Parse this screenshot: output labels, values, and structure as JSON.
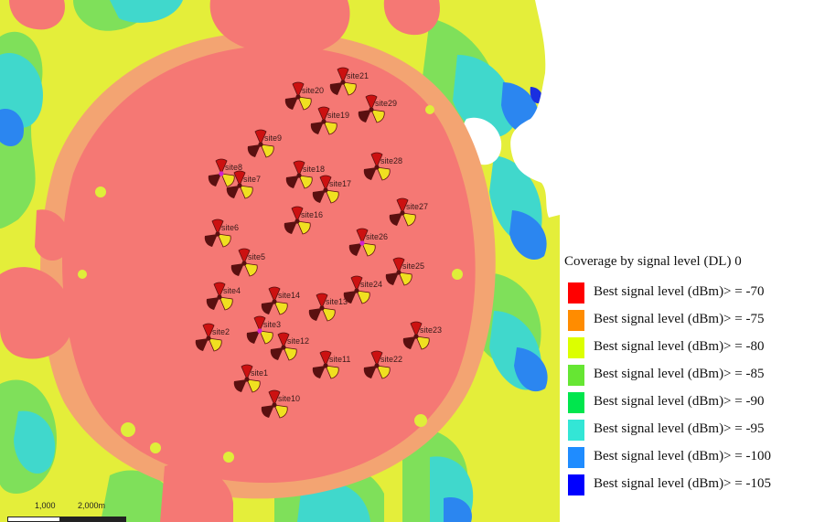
{
  "map": {
    "sites": [
      {
        "label": "site1"
      },
      {
        "label": "site2"
      },
      {
        "label": "site3"
      },
      {
        "label": "site4"
      },
      {
        "label": "site5"
      },
      {
        "label": "site6"
      },
      {
        "label": "site7"
      },
      {
        "label": "site8"
      },
      {
        "label": "site9"
      },
      {
        "label": "site10"
      },
      {
        "label": "site11"
      },
      {
        "label": "site12"
      },
      {
        "label": "site13"
      },
      {
        "label": "site14"
      },
      {
        "label": "site16"
      },
      {
        "label": "site17"
      },
      {
        "label": "site18"
      },
      {
        "label": "site19"
      },
      {
        "label": "site20"
      },
      {
        "label": "site21"
      },
      {
        "label": "site22"
      },
      {
        "label": "site23"
      },
      {
        "label": "site24"
      },
      {
        "label": "site25"
      },
      {
        "label": "site26"
      },
      {
        "label": "site27"
      },
      {
        "label": "site28"
      },
      {
        "label": "site29"
      }
    ],
    "scale": {
      "ticks": [
        "1,000",
        "2,000m"
      ]
    }
  },
  "legend": {
    "title": "Coverage by signal level (DL) 0",
    "items": [
      {
        "label": "Best signal level (dBm)> = -70",
        "color": "#ff0000"
      },
      {
        "label": "Best signal level (dBm)> = -75",
        "color": "#ff8c00"
      },
      {
        "label": "Best signal level (dBm)> = -80",
        "color": "#dcff00"
      },
      {
        "label": "Best signal level (dBm)> = -85",
        "color": "#66e633"
      },
      {
        "label": "Best signal level (dBm)> = -90",
        "color": "#00e64d"
      },
      {
        "label": "Best signal level (dBm)> = -95",
        "color": "#33e6d6"
      },
      {
        "label": "Best signal level (dBm)> = -100",
        "color": "#1f8cff"
      },
      {
        "label": "Best signal level (dBm)> = -105",
        "color": "#0000ff"
      }
    ]
  },
  "colors": {
    "coverage_fill": "#f57874",
    "site_marker_red": "#cc1111",
    "site_marker_yellow": "#f0e020",
    "site_marker_dark": "#5a1010",
    "site_marker_magenta": "#d020d0"
  }
}
